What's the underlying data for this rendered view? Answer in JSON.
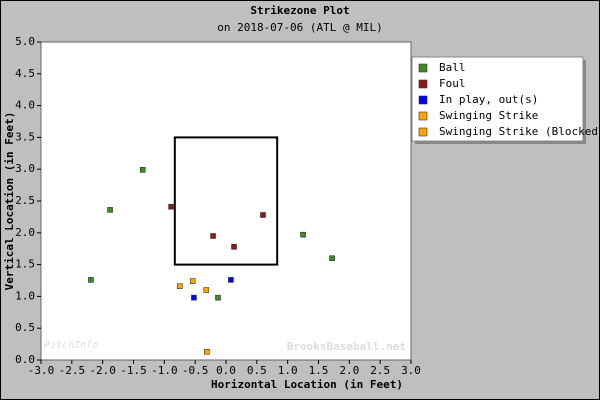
{
  "chart_data": {
    "type": "scatter",
    "title": "Strikezone Plot",
    "subtitle": "on 2018-07-06 (ATL @ MIL)",
    "x_label": "Horizontal Location (in Feet)",
    "y_label": "Vertical Location (in Feet)",
    "xlim": [
      -3.0,
      3.0
    ],
    "ylim": [
      0.0,
      5.0
    ],
    "xticks": [
      {
        "value": -3.0,
        "label": "-3.0"
      },
      {
        "value": -2.5,
        "label": "-2.5"
      },
      {
        "value": -2.0,
        "label": "-2.0"
      },
      {
        "value": -1.5,
        "label": "-1.5"
      },
      {
        "value": -1.0,
        "label": "-1.0"
      },
      {
        "value": -0.5,
        "label": "-0.5"
      },
      {
        "value": 0,
        "label": "0.0"
      },
      {
        "value": 0.5,
        "label": "0.5"
      },
      {
        "value": 1.0,
        "label": "1.0"
      },
      {
        "value": 1.5,
        "label": "1.5"
      },
      {
        "value": 2.0,
        "label": "2.0"
      },
      {
        "value": 2.5,
        "label": "2.5"
      },
      {
        "value": 3.0,
        "label": "3.0"
      }
    ],
    "yticks": [
      {
        "value": 0,
        "label": "0.0"
      },
      {
        "value": 0.5,
        "label": "0.5"
      },
      {
        "value": 1.0,
        "label": "1.0"
      },
      {
        "value": 1.5,
        "label": "1.5"
      },
      {
        "value": 2.0,
        "label": "2.0"
      },
      {
        "value": 2.5,
        "label": "2.5"
      },
      {
        "value": 3.0,
        "label": "3.0"
      },
      {
        "value": 3.5,
        "label": "3.5"
      },
      {
        "value": 4.0,
        "label": "4.0"
      },
      {
        "value": 4.5,
        "label": "4.5"
      },
      {
        "value": 5.0,
        "label": "5.0"
      }
    ],
    "grid": false,
    "legend": "outside upper right",
    "strike_zone": {
      "x": [
        -0.83,
        0.83
      ],
      "y": [
        1.5,
        3.5
      ]
    },
    "watermarks": [
      "PitchInfo",
      "BrooksBaseball.net"
    ],
    "series": [
      {
        "name": "Ball",
        "color": "#3f8a22",
        "x": [
          -1.35,
          -1.88,
          -2.19,
          1.25,
          1.72,
          -0.13
        ],
        "values": [
          2.99,
          2.36,
          1.26,
          1.97,
          1.6,
          0.98
        ]
      },
      {
        "name": "Foul",
        "color": "#8b1a1a",
        "x": [
          -0.89,
          -0.21,
          0.13,
          0.6
        ],
        "values": [
          2.41,
          1.95,
          1.78,
          2.28
        ]
      },
      {
        "name": "In play, out(s)",
        "color": "#0000ff",
        "x": [
          -0.52,
          0.08
        ],
        "values": [
          0.98,
          1.26
        ]
      },
      {
        "name": "Swinging Strike",
        "color": "#ffa500",
        "x": [
          -0.75,
          -0.54,
          -0.32
        ],
        "values": [
          1.16,
          1.24,
          1.1
        ]
      },
      {
        "name": "Swinging Strike (Blocked)",
        "color": "#ffa500",
        "x": [
          -0.31
        ],
        "values": [
          0.13
        ]
      }
    ]
  }
}
